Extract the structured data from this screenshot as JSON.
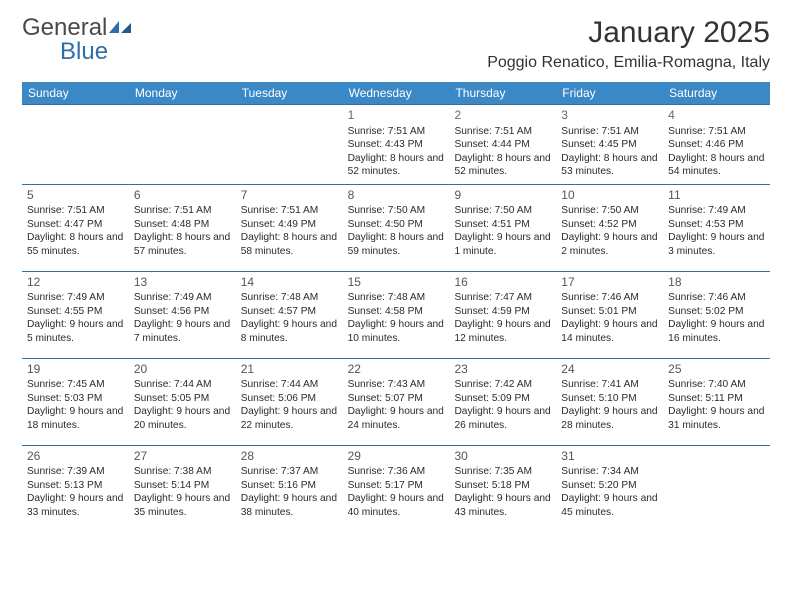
{
  "brand": {
    "text1": "General",
    "text2": "Blue"
  },
  "title": "January 2025",
  "location": "Poggio Renatico, Emilia-Romagna, Italy",
  "colors": {
    "header_bg": "#3a88c6",
    "header_text": "#ffffff",
    "week_border": "#3a6e9a",
    "brand_gray": "#4a4a4a",
    "brand_blue": "#2f6fa7",
    "body_text": "#2b2b2b"
  },
  "weekdays": [
    "Sunday",
    "Monday",
    "Tuesday",
    "Wednesday",
    "Thursday",
    "Friday",
    "Saturday"
  ],
  "weeks": [
    [
      null,
      null,
      null,
      {
        "num": "1",
        "sunrise": "7:51 AM",
        "sunset": "4:43 PM",
        "daylight": "8 hours and 52 minutes."
      },
      {
        "num": "2",
        "sunrise": "7:51 AM",
        "sunset": "4:44 PM",
        "daylight": "8 hours and 52 minutes."
      },
      {
        "num": "3",
        "sunrise": "7:51 AM",
        "sunset": "4:45 PM",
        "daylight": "8 hours and 53 minutes."
      },
      {
        "num": "4",
        "sunrise": "7:51 AM",
        "sunset": "4:46 PM",
        "daylight": "8 hours and 54 minutes."
      }
    ],
    [
      {
        "num": "5",
        "sunrise": "7:51 AM",
        "sunset": "4:47 PM",
        "daylight": "8 hours and 55 minutes."
      },
      {
        "num": "6",
        "sunrise": "7:51 AM",
        "sunset": "4:48 PM",
        "daylight": "8 hours and 57 minutes."
      },
      {
        "num": "7",
        "sunrise": "7:51 AM",
        "sunset": "4:49 PM",
        "daylight": "8 hours and 58 minutes."
      },
      {
        "num": "8",
        "sunrise": "7:50 AM",
        "sunset": "4:50 PM",
        "daylight": "8 hours and 59 minutes."
      },
      {
        "num": "9",
        "sunrise": "7:50 AM",
        "sunset": "4:51 PM",
        "daylight": "9 hours and 1 minute."
      },
      {
        "num": "10",
        "sunrise": "7:50 AM",
        "sunset": "4:52 PM",
        "daylight": "9 hours and 2 minutes."
      },
      {
        "num": "11",
        "sunrise": "7:49 AM",
        "sunset": "4:53 PM",
        "daylight": "9 hours and 3 minutes."
      }
    ],
    [
      {
        "num": "12",
        "sunrise": "7:49 AM",
        "sunset": "4:55 PM",
        "daylight": "9 hours and 5 minutes."
      },
      {
        "num": "13",
        "sunrise": "7:49 AM",
        "sunset": "4:56 PM",
        "daylight": "9 hours and 7 minutes."
      },
      {
        "num": "14",
        "sunrise": "7:48 AM",
        "sunset": "4:57 PM",
        "daylight": "9 hours and 8 minutes."
      },
      {
        "num": "15",
        "sunrise": "7:48 AM",
        "sunset": "4:58 PM",
        "daylight": "9 hours and 10 minutes."
      },
      {
        "num": "16",
        "sunrise": "7:47 AM",
        "sunset": "4:59 PM",
        "daylight": "9 hours and 12 minutes."
      },
      {
        "num": "17",
        "sunrise": "7:46 AM",
        "sunset": "5:01 PM",
        "daylight": "9 hours and 14 minutes."
      },
      {
        "num": "18",
        "sunrise": "7:46 AM",
        "sunset": "5:02 PM",
        "daylight": "9 hours and 16 minutes."
      }
    ],
    [
      {
        "num": "19",
        "sunrise": "7:45 AM",
        "sunset": "5:03 PM",
        "daylight": "9 hours and 18 minutes."
      },
      {
        "num": "20",
        "sunrise": "7:44 AM",
        "sunset": "5:05 PM",
        "daylight": "9 hours and 20 minutes."
      },
      {
        "num": "21",
        "sunrise": "7:44 AM",
        "sunset": "5:06 PM",
        "daylight": "9 hours and 22 minutes."
      },
      {
        "num": "22",
        "sunrise": "7:43 AM",
        "sunset": "5:07 PM",
        "daylight": "9 hours and 24 minutes."
      },
      {
        "num": "23",
        "sunrise": "7:42 AM",
        "sunset": "5:09 PM",
        "daylight": "9 hours and 26 minutes."
      },
      {
        "num": "24",
        "sunrise": "7:41 AM",
        "sunset": "5:10 PM",
        "daylight": "9 hours and 28 minutes."
      },
      {
        "num": "25",
        "sunrise": "7:40 AM",
        "sunset": "5:11 PM",
        "daylight": "9 hours and 31 minutes."
      }
    ],
    [
      {
        "num": "26",
        "sunrise": "7:39 AM",
        "sunset": "5:13 PM",
        "daylight": "9 hours and 33 minutes."
      },
      {
        "num": "27",
        "sunrise": "7:38 AM",
        "sunset": "5:14 PM",
        "daylight": "9 hours and 35 minutes."
      },
      {
        "num": "28",
        "sunrise": "7:37 AM",
        "sunset": "5:16 PM",
        "daylight": "9 hours and 38 minutes."
      },
      {
        "num": "29",
        "sunrise": "7:36 AM",
        "sunset": "5:17 PM",
        "daylight": "9 hours and 40 minutes."
      },
      {
        "num": "30",
        "sunrise": "7:35 AM",
        "sunset": "5:18 PM",
        "daylight": "9 hours and 43 minutes."
      },
      {
        "num": "31",
        "sunrise": "7:34 AM",
        "sunset": "5:20 PM",
        "daylight": "9 hours and 45 minutes."
      },
      null
    ]
  ],
  "labels": {
    "sunrise": "Sunrise:",
    "sunset": "Sunset:",
    "daylight": "Daylight:"
  }
}
